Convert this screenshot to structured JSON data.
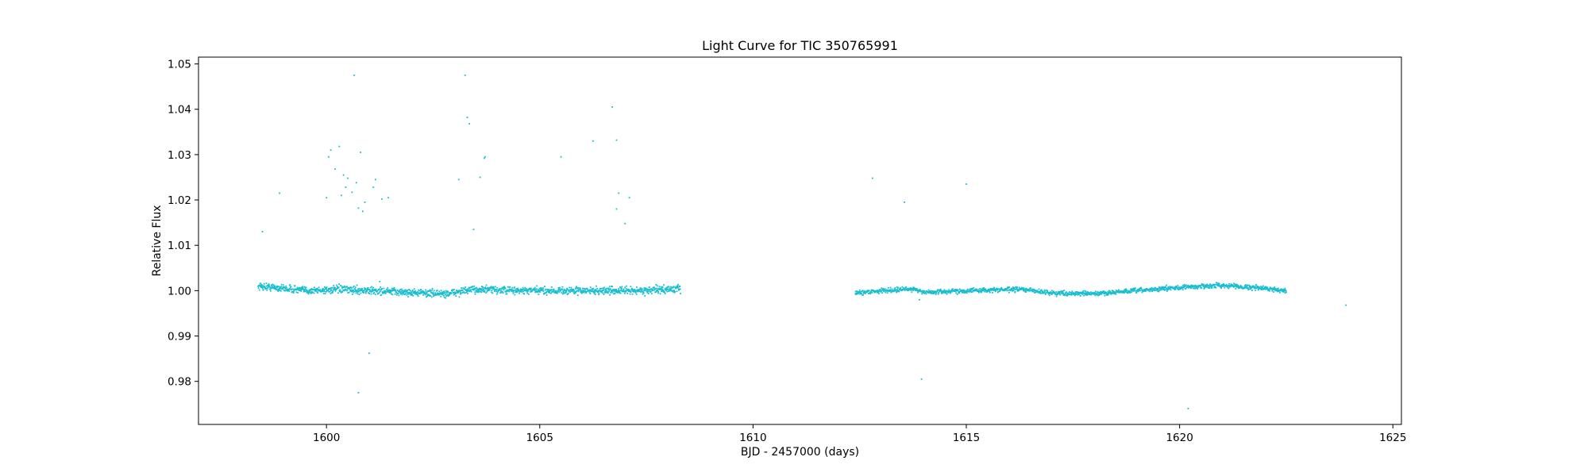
{
  "chart_data": {
    "type": "scatter",
    "title": "Light Curve for TIC 350765991",
    "xlabel": "BJD - 2457000 (days)",
    "ylabel": "Relative Flux",
    "xlim": [
      1597.0,
      1625.2
    ],
    "ylim": [
      0.9705,
      1.0515
    ],
    "xticks": [
      1600,
      1605,
      1610,
      1615,
      1620,
      1625
    ],
    "yticks": [
      0.98,
      0.99,
      1.0,
      1.01,
      1.02,
      1.03,
      1.04,
      1.05
    ],
    "ytick_labels": [
      "0.98",
      "0.99",
      "1.00",
      "1.01",
      "1.02",
      "1.03",
      "1.04",
      "1.05"
    ],
    "grid": false,
    "color": "#17becf",
    "series": [
      {
        "segments": [
          {
            "x_start": 1598.4,
            "x_end": 1608.3,
            "scatter": 0.0004,
            "trend": [
              [
                1598.4,
                1.001
              ],
              [
                1599.0,
                1.0005
              ],
              [
                1599.6,
                1.0
              ],
              [
                1600.3,
                1.0003
              ],
              [
                1601.0,
                1.0
              ],
              [
                1602.0,
                0.9996
              ],
              [
                1602.8,
                0.9993
              ],
              [
                1603.5,
                1.0003
              ],
              [
                1604.5,
                1.0
              ],
              [
                1605.5,
                1.0
              ],
              [
                1606.5,
                1.0
              ],
              [
                1607.3,
                1.0
              ],
              [
                1608.3,
                1.0004
              ]
            ]
          },
          {
            "x_start": 1612.4,
            "x_end": 1622.5,
            "scatter": 0.00025,
            "trend": [
              [
                1612.4,
                0.9995
              ],
              [
                1613.0,
                1.0
              ],
              [
                1613.8,
                1.0004
              ],
              [
                1614.0,
                0.9996
              ],
              [
                1615.0,
                1.0
              ],
              [
                1616.3,
                1.0003
              ],
              [
                1617.0,
                0.9995
              ],
              [
                1618.0,
                0.9993
              ],
              [
                1619.0,
                1.0
              ],
              [
                1620.0,
                1.0007
              ],
              [
                1621.0,
                1.0012
              ],
              [
                1622.0,
                1.0005
              ],
              [
                1622.5,
                1.0
              ]
            ]
          }
        ],
        "outliers": [
          [
            1598.5,
            1.013
          ],
          [
            1598.9,
            1.0215
          ],
          [
            1599.6,
            1.0
          ],
          [
            1600.0,
            1.0205
          ],
          [
            1600.05,
            1.0295
          ],
          [
            1600.1,
            1.031
          ],
          [
            1600.2,
            1.0268
          ],
          [
            1600.3,
            1.0318
          ],
          [
            1600.35,
            1.021
          ],
          [
            1600.4,
            1.0255
          ],
          [
            1600.45,
            1.0228
          ],
          [
            1600.5,
            1.0248
          ],
          [
            1600.6,
            1.0217
          ],
          [
            1600.65,
            1.0475
          ],
          [
            1600.7,
            1.0238
          ],
          [
            1600.75,
            1.0182
          ],
          [
            1600.8,
            1.0305
          ],
          [
            1600.85,
            1.0175
          ],
          [
            1600.9,
            1.0195
          ],
          [
            1600.75,
            0.9775
          ],
          [
            1601.0,
            0.9862
          ],
          [
            1601.1,
            1.0228
          ],
          [
            1601.15,
            1.0245
          ],
          [
            1601.3,
            1.0202
          ],
          [
            1601.45,
            1.0205
          ],
          [
            1601.25,
            1.002
          ],
          [
            1603.1,
            1.0245
          ],
          [
            1603.25,
            1.0475
          ],
          [
            1603.3,
            1.0382
          ],
          [
            1603.35,
            1.0368
          ],
          [
            1603.45,
            1.0135
          ],
          [
            1603.6,
            1.025
          ],
          [
            1603.7,
            1.0292
          ],
          [
            1603.72,
            1.0295
          ],
          [
            1605.5,
            1.0295
          ],
          [
            1606.25,
            1.033
          ],
          [
            1606.7,
            1.0405
          ],
          [
            1606.8,
            1.0332
          ],
          [
            1606.8,
            1.018
          ],
          [
            1606.85,
            1.0215
          ],
          [
            1607.0,
            1.0148
          ],
          [
            1607.1,
            1.0205
          ],
          [
            1612.8,
            1.0248
          ],
          [
            1613.55,
            1.0195
          ],
          [
            1613.95,
            0.9805
          ],
          [
            1613.9,
            0.998
          ],
          [
            1615.0,
            1.0235
          ],
          [
            1620.2,
            0.974
          ],
          [
            1623.9,
            0.9968
          ]
        ]
      }
    ]
  }
}
